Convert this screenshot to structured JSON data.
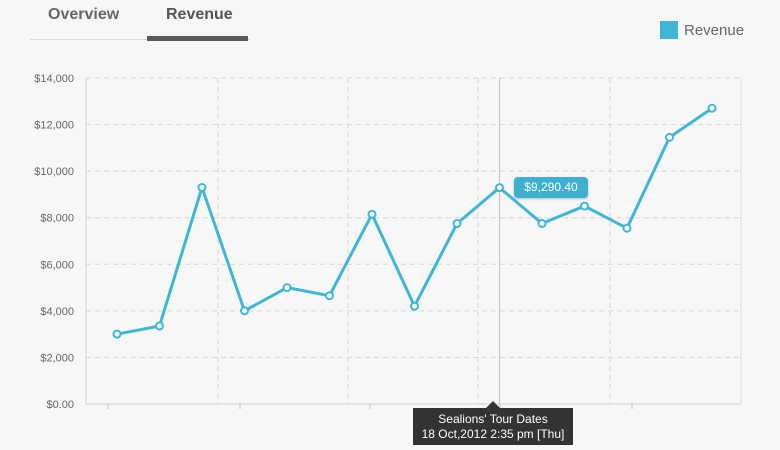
{
  "tabs": [
    {
      "label": "Overview",
      "active": false
    },
    {
      "label": "Revenue",
      "active": true
    }
  ],
  "legend": {
    "label": "Revenue",
    "color": "#3fb6d6"
  },
  "tooltip": {
    "value_label": "$9,290.40",
    "title": "Sealions' Tour Dates",
    "date": "18 Oct,2012 2:35 pm [Thu]"
  },
  "chart_data": {
    "type": "line",
    "title": "",
    "xlabel": "",
    "ylabel": "",
    "ylim": [
      0,
      14000
    ],
    "yticks": [
      "$0.00",
      "$2,000",
      "$4,000",
      "$6,000",
      "$8,000",
      "$10,000",
      "$12,000",
      "$14,000"
    ],
    "grid": true,
    "legend_position": "top-right",
    "series": [
      {
        "name": "Revenue",
        "color": "#3fb6d6",
        "values": [
          3000,
          3350,
          9300,
          4000,
          5000,
          4650,
          8150,
          4200,
          7750,
          9290.4,
          7750,
          8500,
          7550,
          11450,
          12700
        ]
      }
    ],
    "highlighted_index": 9
  }
}
